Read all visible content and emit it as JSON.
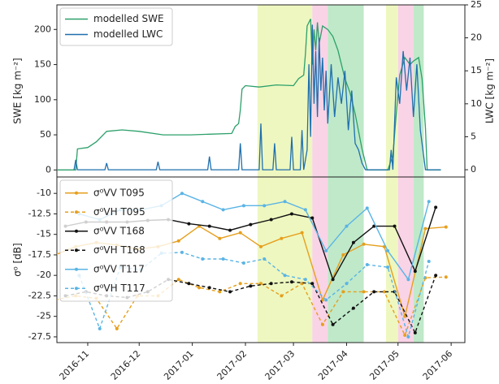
{
  "chart_data": [
    {
      "type": "line",
      "ylabel": "SWE [kg m⁻²]",
      "y2label": "LWC [kg m⁻²]",
      "xlim": [
        -18,
        220
      ],
      "ylim": [
        -10,
        235
      ],
      "yticks": [
        0,
        50,
        100,
        150,
        200
      ],
      "y2lim": [
        -1.1,
        25
      ],
      "y2ticks": [
        0,
        5,
        10,
        15,
        20,
        25
      ],
      "legend": "upper left",
      "series": [
        {
          "name": "modelled SWE",
          "color": "#2ca06a",
          "x": [
            -18,
            -7,
            -6,
            0,
            5,
            11,
            20,
            30,
            44,
            60,
            84,
            86,
            88,
            89,
            90,
            92,
            100,
            110,
            120,
            123,
            126,
            127,
            128,
            130,
            131,
            132,
            133,
            134,
            135,
            137,
            140,
            143,
            146,
            150,
            153,
            156,
            160,
            163,
            175,
            178,
            180,
            182,
            185,
            188,
            190,
            193,
            195,
            197,
            198,
            206
          ],
          "values": [
            0,
            0,
            30,
            32,
            40,
            55,
            57,
            55,
            50,
            50,
            52,
            62,
            66,
            85,
            115,
            120,
            118,
            121,
            120,
            130,
            135,
            165,
            205,
            215,
            150,
            200,
            170,
            210,
            180,
            205,
            200,
            190,
            170,
            130,
            110,
            80,
            30,
            0,
            0,
            20,
            80,
            135,
            160,
            150,
            155,
            160,
            130,
            60,
            0,
            0
          ]
        },
        {
          "name": "modelled LWC",
          "color": "#1f6fae",
          "axis": "y2",
          "x": [
            -8,
            -7,
            -6,
            10,
            11,
            12,
            40,
            41,
            42,
            70,
            71,
            72,
            88,
            89,
            90,
            100,
            101,
            102,
            108,
            109,
            110,
            118,
            119,
            120,
            124,
            125,
            126,
            128,
            129,
            130,
            131,
            132,
            133,
            134,
            135,
            136,
            137,
            138,
            139,
            140,
            142,
            144,
            146,
            148,
            150,
            152,
            154,
            156,
            158,
            160,
            162,
            163,
            176,
            177,
            178,
            180,
            182,
            184,
            186,
            188,
            190,
            192,
            194,
            196,
            197,
            206
          ],
          "values": [
            0,
            1.5,
            0,
            0,
            1,
            0,
            0,
            1.2,
            0,
            0,
            2,
            0,
            0,
            4,
            0,
            0,
            7,
            0,
            0,
            4,
            0,
            0,
            5,
            0,
            0,
            6,
            0,
            3,
            16,
            5,
            22,
            10,
            18,
            8,
            20,
            12,
            17,
            9,
            15,
            7,
            16,
            8,
            14,
            10,
            15,
            6,
            12,
            4,
            3,
            1,
            0,
            0,
            0,
            3,
            0,
            14,
            10,
            18,
            12,
            17,
            8,
            16,
            6,
            2,
            0,
            0
          ]
        }
      ]
    },
    {
      "type": "line",
      "ylabel": "σ⁰ [dB]",
      "xlim": [
        -18,
        220
      ],
      "ylim": [
        -28.2,
        -8
      ],
      "yticks": [
        -10,
        -12.5,
        -15,
        -17.5,
        -20,
        -22.5,
        -25,
        -27.5
      ],
      "xticks": [
        {
          "value": 0,
          "label": "2016-11"
        },
        {
          "value": 30,
          "label": "2016-12"
        },
        {
          "value": 61,
          "label": "2017-01"
        },
        {
          "value": 92,
          "label": "2017-02"
        },
        {
          "value": 120,
          "label": "2017-03"
        },
        {
          "value": 151,
          "label": "2017-04"
        },
        {
          "value": 181,
          "label": "2017-05"
        },
        {
          "value": 212,
          "label": "2017-06"
        }
      ],
      "legend": "upper left",
      "spans": [
        {
          "start": 99,
          "end": 131,
          "color": "#eef7c0"
        },
        {
          "start": 131,
          "end": 140,
          "color": "#f9d3e6"
        },
        {
          "start": 140,
          "end": 161,
          "color": "#bfe9c9"
        },
        {
          "start": 174,
          "end": 181,
          "color": "#eef7c0"
        },
        {
          "start": 181,
          "end": 190,
          "color": "#f9d3e6"
        },
        {
          "start": 190,
          "end": 196,
          "color": "#bfe9c9"
        }
      ],
      "series": [
        {
          "name": "σ⁰VV T095",
          "color": "#e69f1c",
          "dashed": false,
          "x": [
            -19,
            -7,
            5,
            17,
            29,
            41,
            53,
            65,
            77,
            89,
            101,
            113,
            125,
            137,
            149,
            161,
            173,
            185,
            197,
            209
          ],
          "values": [
            -17.5,
            -16.5,
            -16,
            -16.3,
            -16.8,
            -16.5,
            -15.8,
            -14,
            -15.5,
            -14.8,
            -16.5,
            -15.5,
            -14.8,
            -23,
            -17.5,
            -16.2,
            -16.5,
            -25,
            -14.3,
            -14.1
          ]
        },
        {
          "name": "σ⁰VH T095",
          "color": "#e69f1c",
          "dashed": true,
          "x": [
            -19,
            -7,
            5,
            17,
            29,
            41,
            53,
            65,
            77,
            89,
            101,
            113,
            125,
            137,
            149,
            161,
            173,
            185,
            197,
            209
          ],
          "values": [
            -23,
            -22.5,
            -22.8,
            -26.5,
            -22.5,
            -22.5,
            -20.5,
            -21.5,
            -22,
            -21,
            -21,
            -22.5,
            -21,
            -26,
            -22,
            -22,
            -22,
            -27.3,
            -20.3,
            -20.2
          ]
        },
        {
          "name": "σ⁰VV T168",
          "color": "#111111",
          "dashed": false,
          "x": [
            -13,
            -1,
            11,
            23,
            35,
            47,
            59,
            71,
            83,
            95,
            107,
            119,
            131,
            143,
            155,
            167,
            179,
            191,
            203
          ],
          "values": [
            -14,
            -13.5,
            -13.5,
            -13.5,
            -13.3,
            -13.2,
            -13.7,
            -14,
            -14.5,
            -13.8,
            -13.2,
            -12.5,
            -13,
            -20.5,
            -16,
            -14,
            -14,
            -19.5,
            -11.7
          ]
        },
        {
          "name": "σ⁰VH T168",
          "color": "#111111",
          "dashed": true,
          "x": [
            -13,
            -1,
            11,
            23,
            35,
            47,
            59,
            71,
            83,
            95,
            107,
            119,
            131,
            143,
            155,
            167,
            179,
            191,
            203
          ],
          "values": [
            -22.5,
            -22,
            -22.5,
            -22.7,
            -22,
            -20.5,
            -21,
            -21.5,
            -22,
            -21.3,
            -21,
            -20.8,
            -21,
            -26,
            -24,
            -22,
            -22,
            -27,
            -20
          ]
        },
        {
          "name": "σ⁰VV T117",
          "color": "#5ab4e5",
          "dashed": false,
          "x": [
            -5,
            7,
            19,
            31,
            43,
            55,
            67,
            79,
            91,
            103,
            115,
            127,
            139,
            151,
            163,
            175,
            187,
            199
          ],
          "values": [
            -12.5,
            -13.2,
            -12,
            -12,
            -11.5,
            -10,
            -11,
            -12,
            -11.5,
            -11.5,
            -11,
            -12,
            -17,
            -14,
            -11.8,
            -17,
            -20.5,
            -11
          ]
        },
        {
          "name": "σ⁰VH T117",
          "color": "#5ab4e5",
          "dashed": true,
          "x": [
            -5,
            7,
            19,
            31,
            43,
            55,
            67,
            79,
            91,
            103,
            115,
            127,
            139,
            151,
            163,
            175,
            187,
            199
          ],
          "values": [
            -20,
            -26.5,
            -19,
            -19.3,
            -17.3,
            -17.2,
            -18,
            -18,
            -18.5,
            -18,
            -20,
            -20.5,
            -23,
            -21,
            -18.7,
            -19,
            -27.5,
            -18.3
          ]
        }
      ]
    }
  ]
}
